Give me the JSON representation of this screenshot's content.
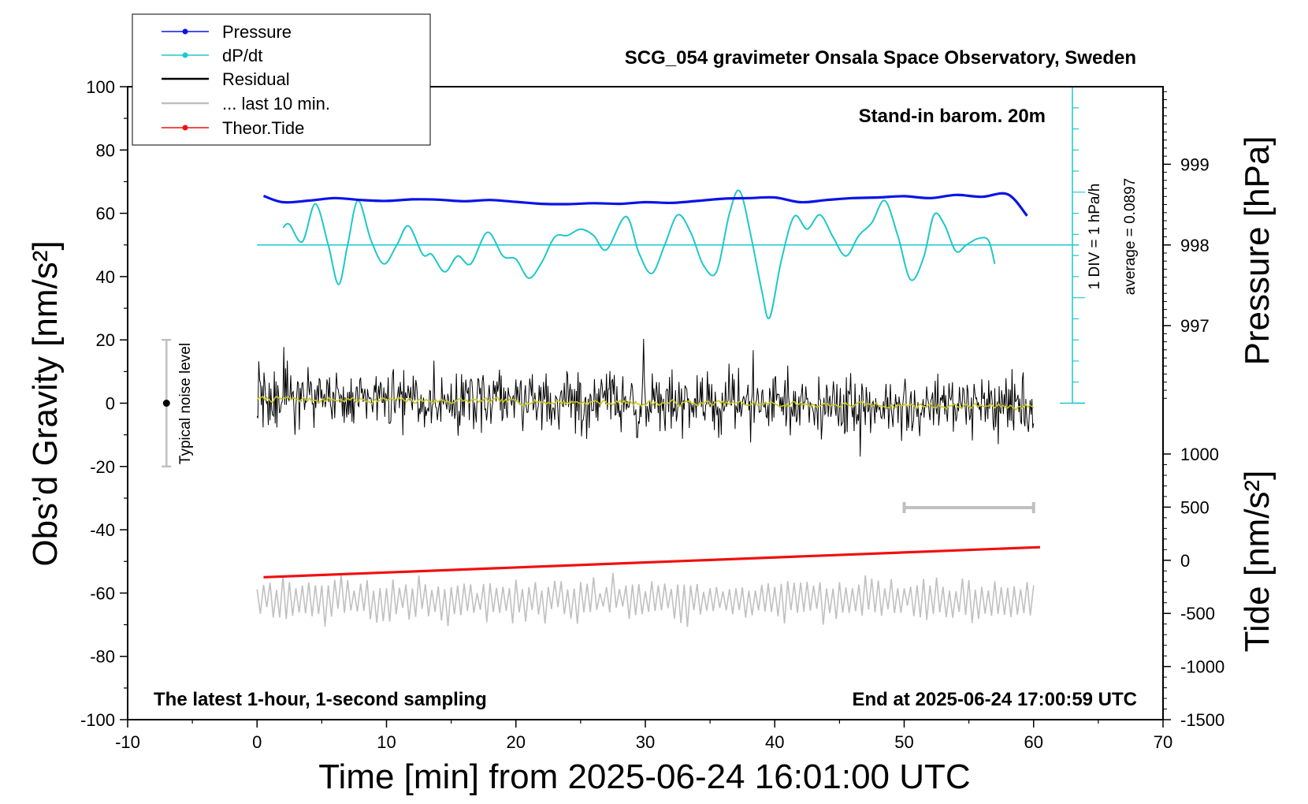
{
  "chart_data": {
    "type": "line",
    "title": "SCG_054 gravimeter Onsala Space Observatory, Sweden",
    "xlabel": "Time [min] from 2025-06-24 16:01:00 UTC",
    "ylabel_left": "Obs’d Gravity [nm/s²]",
    "ylabel_pressure": "Pressure [hPa]",
    "ylabel_tide": "Tide [nm/s²]",
    "xlim": [
      -10,
      70
    ],
    "ylim": [
      -100,
      100
    ],
    "x_ticks": [
      "-10",
      "0",
      "10",
      "20",
      "30",
      "40",
      "50",
      "60",
      "70"
    ],
    "y_ticks": [
      "-100",
      "-80",
      "-60",
      "-40",
      "-20",
      "0",
      "20",
      "40",
      "60",
      "80",
      "100"
    ],
    "pressure_ticks": [
      "997",
      "998",
      "999"
    ],
    "tide_ticks": [
      "-1500",
      "-1000",
      "-500",
      "0",
      "500",
      "1000"
    ],
    "annotations": {
      "barometer": "Stand-in barom. 20m",
      "scale": "1 DIV = 1 hPa/h",
      "average": "average = 0.0897",
      "noise": "Typical noise level",
      "sampling": "The latest 1-hour, 1-second sampling",
      "end": "End at 2025-06-24 17:00:59 UTC"
    },
    "legend": [
      "Pressure",
      "dP/dt",
      "Residual",
      "... last 10 min.",
      "Theor.Tide"
    ],
    "colors": {
      "pressure": "#0a14e6",
      "dpdt": "#1ec8c8",
      "residual": "#000000",
      "smooth": "#c8c81e",
      "last10": "#c0c0c0",
      "tide": "#f01010"
    },
    "series": [
      {
        "name": "Pressure",
        "x": [
          0.5,
          2,
          4,
          6,
          8,
          10,
          12,
          14,
          16,
          18,
          20,
          22,
          24,
          26,
          28,
          30,
          32,
          34,
          36,
          38,
          40,
          42,
          44,
          46,
          48,
          50,
          52,
          54,
          56,
          58,
          59.5
        ],
        "y": [
          65.5,
          63.5,
          64.0,
          64.8,
          64.2,
          63.9,
          64.4,
          64.3,
          63.8,
          64.2,
          63.6,
          63.0,
          62.9,
          63.2,
          63.0,
          63.5,
          63.3,
          63.9,
          64.6,
          64.8,
          65.0,
          63.5,
          64.2,
          64.8,
          65.0,
          65.4,
          64.8,
          65.8,
          65.2,
          66.0,
          59.2
        ]
      },
      {
        "name": "dP/dt",
        "average": 0.0897,
        "x": [
          2,
          2.5,
          3.5,
          4.5,
          5.5,
          6.3,
          7,
          7.8,
          8.8,
          9.8,
          10.8,
          11.7,
          12.8,
          13.5,
          14.5,
          15.5,
          16.5,
          17.8,
          19,
          20,
          21,
          22,
          23,
          24,
          25,
          26,
          27,
          28.5,
          29.5,
          30.5,
          31.5,
          32.5,
          33.5,
          34.5,
          35.5,
          36.5,
          37.3,
          38.2,
          39,
          39.6,
          40.5,
          41.5,
          42.5,
          43.5,
          44.5,
          45.5,
          46.5,
          47.5,
          48.5,
          49.5,
          50.5,
          51.5,
          52.3,
          53.1,
          54,
          54.8,
          55.7,
          56.5,
          57
        ],
        "y": [
          55.5,
          56.5,
          51.0,
          63.0,
          50.0,
          37.5,
          50.0,
          64.0,
          51.5,
          44.0,
          50.0,
          56.0,
          47.0,
          47.0,
          41.5,
          46.5,
          44.0,
          54.0,
          46.5,
          45.5,
          39.5,
          44.5,
          52.5,
          53.0,
          55.0,
          53.0,
          48.5,
          59.0,
          47.5,
          41.0,
          50.0,
          59.5,
          54.0,
          43.5,
          41.5,
          60.0,
          67.0,
          52.0,
          35.5,
          27.0,
          45.0,
          59.0,
          55.0,
          59.5,
          52.5,
          46.5,
          53.0,
          57.0,
          64.0,
          53.0,
          39.0,
          46.0,
          59.5,
          56.5,
          48.0,
          50.0,
          52.0,
          51.5,
          44.0
        ]
      },
      {
        "name": "Residual",
        "x_range": [
          0,
          60
        ],
        "amplitude": 6
      },
      {
        "name": "Theor.Tide",
        "x": [
          0.5,
          60.5
        ],
        "y": [
          -55.0,
          -45.5
        ]
      },
      {
        "name": "... last 10 min.",
        "x_range": [
          0,
          60
        ],
        "offset": -62,
        "bar_x": [
          50,
          60
        ]
      }
    ]
  }
}
